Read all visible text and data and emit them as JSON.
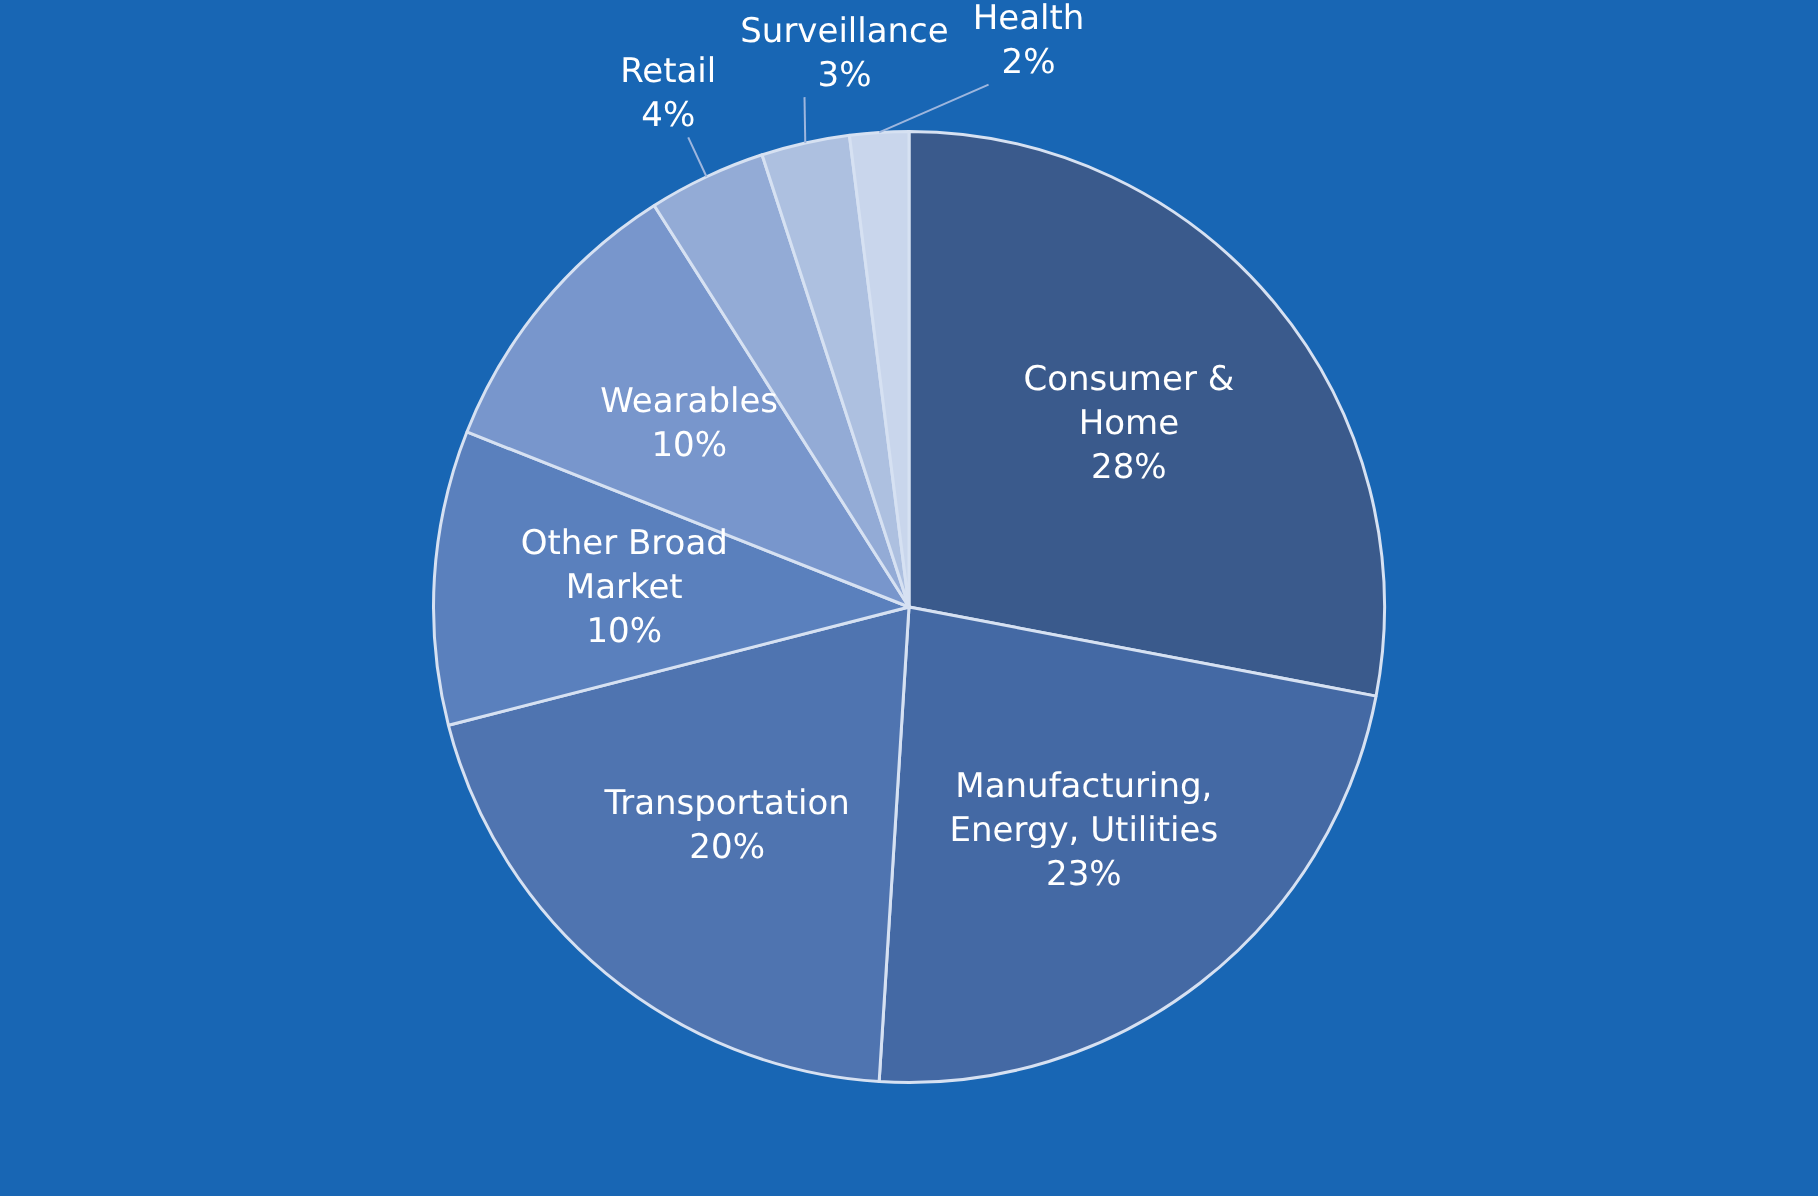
{
  "chart_data": {
    "type": "pie",
    "categories": [
      "Consumer & Home",
      "Manufacturing, Energy, Utilities",
      "Transportation",
      "Other Broad Market",
      "Wearables",
      "Retail",
      "Surveillance",
      "Health"
    ],
    "values": [
      28,
      23,
      20,
      10,
      10,
      4,
      3,
      2
    ],
    "value_labels": [
      "28%",
      "23%",
      "20%",
      "10%",
      "10%",
      "4%",
      "3%",
      "2%"
    ],
    "colors": [
      "#3a5a8c",
      "#4469a4",
      "#4f74b0",
      "#5a80bd",
      "#7896cc",
      "#93abd6",
      "#adc0e0",
      "#c9d6ec"
    ],
    "legend": false
  }
}
